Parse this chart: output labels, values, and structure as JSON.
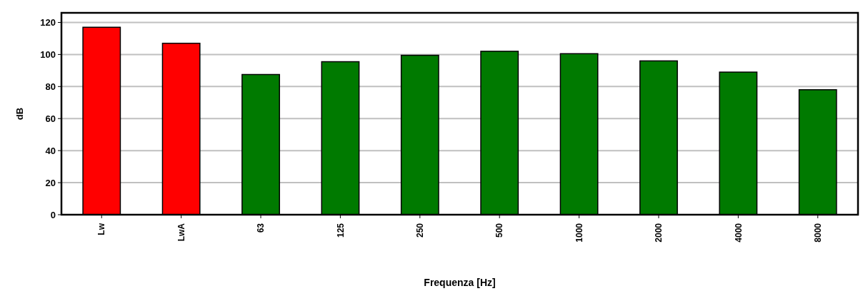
{
  "chart_data": {
    "type": "bar",
    "xlabel": "Frequenza [Hz]",
    "ylabel": "dB",
    "categories": [
      "Lw",
      "LwA",
      "63",
      "125",
      "250",
      "500",
      "1000",
      "2000",
      "4000",
      "8000"
    ],
    "values": [
      117,
      107,
      87.5,
      95.5,
      99.5,
      102,
      100.5,
      96,
      89,
      78
    ],
    "colors": [
      "#ff0000",
      "#ff0000",
      "#007a00",
      "#007a00",
      "#007a00",
      "#007a00",
      "#007a00",
      "#007a00",
      "#007a00",
      "#007a00"
    ],
    "ylim": [
      0,
      126
    ],
    "yticks": [
      0,
      20,
      40,
      60,
      80,
      100,
      120
    ],
    "grid": "y"
  }
}
